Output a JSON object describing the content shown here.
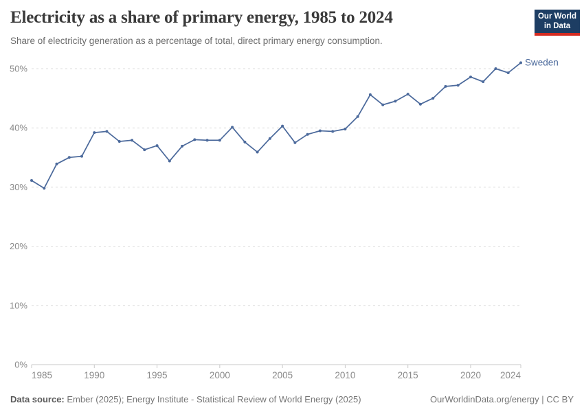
{
  "header": {
    "title": "Electricity as a share of primary energy, 1985 to 2024",
    "subtitle": "Share of electricity generation as a percentage of total, direct primary energy consumption.",
    "logo": {
      "line1": "Our World",
      "line2": "in Data",
      "bg_color": "#1d3d63",
      "accent_color": "#d42b21"
    }
  },
  "chart_data": {
    "type": "line",
    "title": "Electricity as a share of primary energy, 1985 to 2024",
    "xlabel": "",
    "ylabel": "",
    "grid": "horizontal-dashed",
    "legend_position": "end-of-line",
    "ylim": [
      0,
      52
    ],
    "x": [
      1985,
      1986,
      1987,
      1988,
      1989,
      1990,
      1991,
      1992,
      1993,
      1994,
      1995,
      1996,
      1997,
      1998,
      1999,
      2000,
      2001,
      2002,
      2003,
      2004,
      2005,
      2006,
      2007,
      2008,
      2009,
      2010,
      2011,
      2012,
      2013,
      2014,
      2015,
      2016,
      2017,
      2018,
      2019,
      2020,
      2021,
      2022,
      2023,
      2024
    ],
    "x_ticks": [
      1985,
      1990,
      1995,
      2000,
      2005,
      2010,
      2015,
      2020,
      2024
    ],
    "y_ticks": [
      {
        "value": 0,
        "label": "0%"
      },
      {
        "value": 10,
        "label": "10%"
      },
      {
        "value": 20,
        "label": "20%"
      },
      {
        "value": 30,
        "label": "30%"
      },
      {
        "value": 40,
        "label": "40%"
      },
      {
        "value": 50,
        "label": "50%"
      }
    ],
    "series": [
      {
        "name": "Sweden",
        "color": "#4C6A9C",
        "values": [
          31.1,
          29.8,
          33.9,
          35.0,
          35.2,
          39.2,
          39.4,
          37.7,
          37.9,
          36.3,
          37.0,
          34.4,
          36.9,
          38.0,
          37.9,
          37.9,
          40.1,
          37.6,
          35.9,
          38.2,
          40.3,
          37.5,
          38.9,
          39.5,
          39.4,
          39.8,
          41.9,
          45.6,
          43.9,
          44.5,
          45.7,
          44.0,
          45.0,
          47.0,
          47.2,
          48.6,
          47.8,
          50.0,
          49.3,
          51.0
        ]
      }
    ]
  },
  "footer": {
    "source_label": "Data source:",
    "source_text": " Ember (2025); Energy Institute - Statistical Review of World Energy (2025)",
    "credit": "OurWorldinData.org/energy | CC BY"
  }
}
